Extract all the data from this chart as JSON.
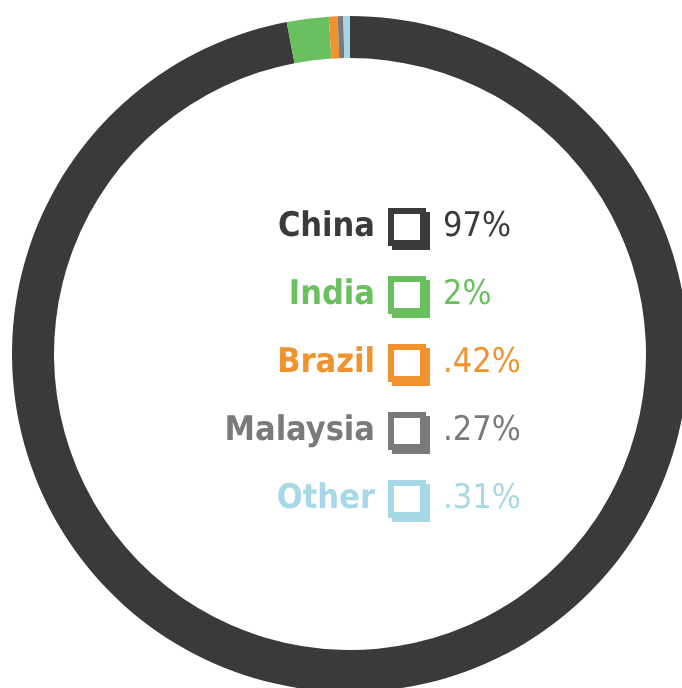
{
  "chart_data": {
    "type": "donut",
    "categories": [
      "China",
      "India",
      "Brazil",
      "Malaysia",
      "Other"
    ],
    "values": [
      97,
      2,
      0.42,
      0.27,
      0.31
    ],
    "colors": [
      "#3a3a3c",
      "#6abf5e",
      "#f0922e",
      "#7a7a7c",
      "#a6d8e6"
    ],
    "value_labels": [
      "97%",
      "2%",
      ".42%",
      ".27%",
      ".31%"
    ],
    "legend": "center"
  }
}
